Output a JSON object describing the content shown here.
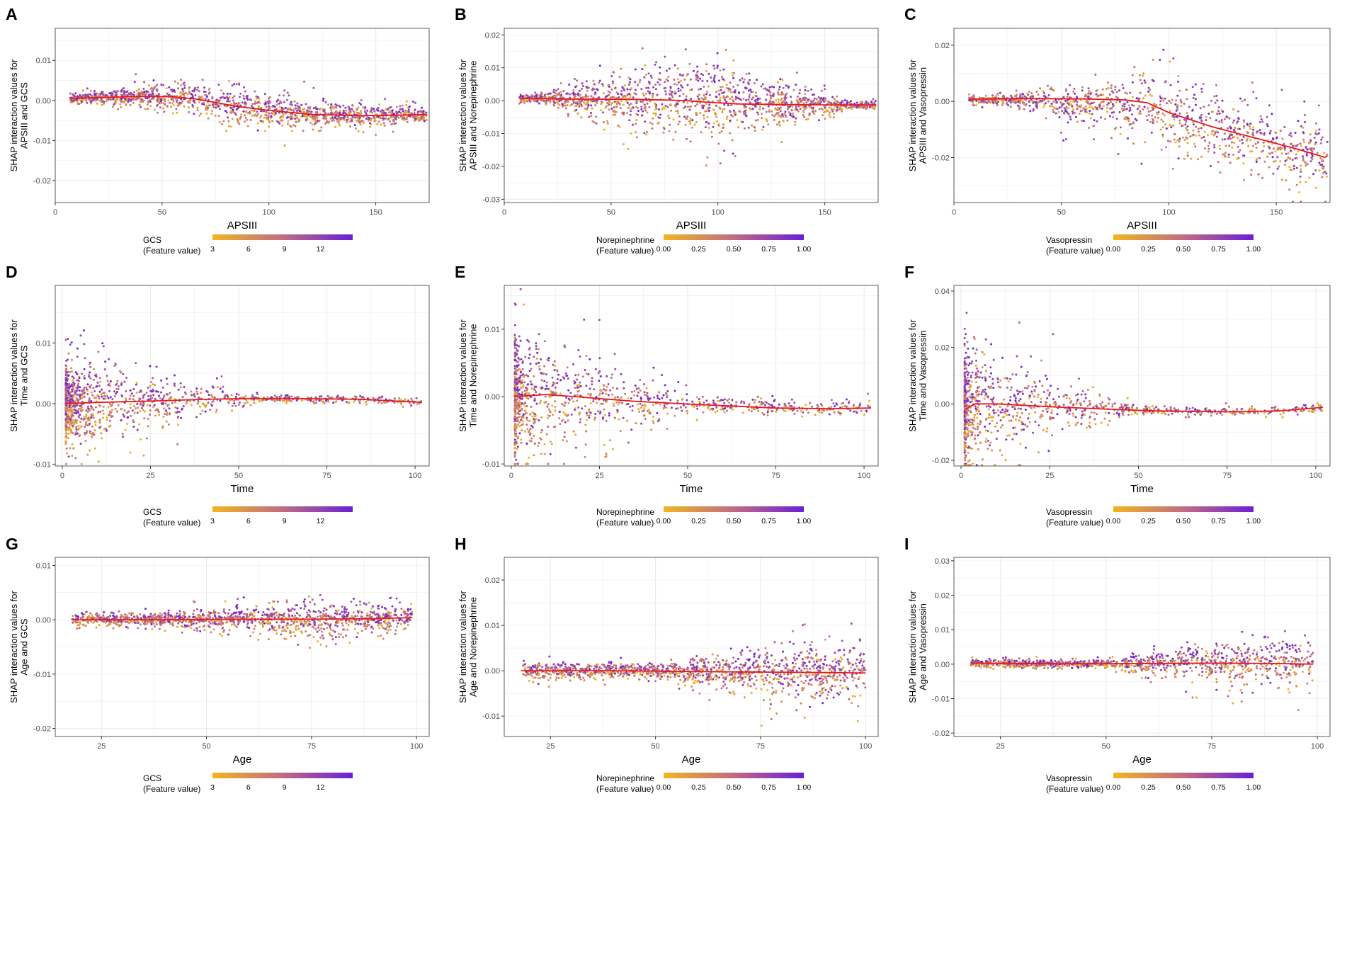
{
  "colors": {
    "low": "#f2b51f",
    "mid": "#c26b82",
    "high": "#6a1fd6",
    "smooth": "#e31a1c",
    "grid": "#ebebeb",
    "panel_border": "#333333"
  },
  "chart_data": [
    {
      "panel": "A",
      "type": "scatter",
      "xlabel": "APSIII",
      "ylabel_lines": [
        "SHAP interaction values for",
        "APSIII and GCS"
      ],
      "xlim": [
        0,
        175
      ],
      "ylim": [
        -0.0255,
        0.018
      ],
      "xticks": [
        {
          "v": 0,
          "t": "0"
        },
        {
          "v": 50,
          "t": "50"
        },
        {
          "v": 100,
          "t": "100"
        },
        {
          "v": 150,
          "t": "150"
        }
      ],
      "yticks": [
        {
          "v": -0.02,
          "t": "-0.02"
        },
        {
          "v": -0.01,
          "t": "-0.01"
        },
        {
          "v": 0,
          "t": "0.00"
        },
        {
          "v": 0.01,
          "t": "0.01"
        }
      ],
      "smooth_line": [
        [
          7,
          0.0005
        ],
        [
          20,
          0.0007
        ],
        [
          40,
          0.001
        ],
        [
          55,
          0.0009
        ],
        [
          65,
          0.0004
        ],
        [
          75,
          -0.0005
        ],
        [
          85,
          -0.0015
        ],
        [
          100,
          -0.0025
        ],
        [
          120,
          -0.0035
        ],
        [
          140,
          -0.0038
        ],
        [
          160,
          -0.0037
        ],
        [
          174,
          -0.0035
        ]
      ],
      "scatter": {
        "x_min": 7,
        "x_max": 174,
        "peak_x": 78,
        "spread_start": 0.001,
        "spread_peak": 0.008,
        "spread_end": 0.004,
        "count": 1400
      },
      "legend": {
        "title_lines": [
          "GCS",
          "(Feature value)"
        ],
        "ticks": [
          "3",
          "6",
          "9",
          "12"
        ]
      }
    },
    {
      "panel": "B",
      "type": "scatter",
      "xlabel": "APSIII",
      "ylabel_lines": [
        "SHAP interaction values for",
        "APSIII and Norepinephrine"
      ],
      "xlim": [
        0,
        175
      ],
      "ylim": [
        -0.031,
        0.022
      ],
      "xticks": [
        {
          "v": 0,
          "t": "0"
        },
        {
          "v": 50,
          "t": "50"
        },
        {
          "v": 100,
          "t": "100"
        },
        {
          "v": 150,
          "t": "150"
        }
      ],
      "yticks": [
        {
          "v": -0.03,
          "t": "-0.03"
        },
        {
          "v": -0.02,
          "t": "-0.02"
        },
        {
          "v": -0.01,
          "t": "-0.01"
        },
        {
          "v": 0,
          "t": "0.00"
        },
        {
          "v": 0.01,
          "t": "0.01"
        },
        {
          "v": 0.02,
          "t": "0.02"
        }
      ],
      "smooth_line": [
        [
          7,
          0.0007
        ],
        [
          30,
          0.0005
        ],
        [
          60,
          0.0004
        ],
        [
          75,
          0.0002
        ],
        [
          85,
          0
        ],
        [
          95,
          -0.0005
        ],
        [
          110,
          -0.001
        ],
        [
          130,
          -0.0012
        ],
        [
          150,
          -0.0013
        ],
        [
          174,
          -0.0013
        ]
      ],
      "scatter": {
        "x_min": 7,
        "x_max": 174,
        "peak_x": 88,
        "spread_start": 0.002,
        "spread_peak": 0.022,
        "spread_end": 0.002,
        "count": 1400
      },
      "legend": {
        "title_lines": [
          "Norepinephrine",
          "(Feature value)"
        ],
        "ticks": [
          "0.00",
          "0.25",
          "0.50",
          "0.75",
          "1.00"
        ]
      }
    },
    {
      "panel": "C",
      "type": "scatter",
      "xlabel": "APSIII",
      "ylabel_lines": [
        "SHAP interaction values for",
        "APSIII and Vasopressin"
      ],
      "xlim": [
        0,
        175
      ],
      "ylim": [
        -0.036,
        0.026
      ],
      "xticks": [
        {
          "v": 0,
          "t": "0"
        },
        {
          "v": 50,
          "t": "50"
        },
        {
          "v": 100,
          "t": "100"
        },
        {
          "v": 150,
          "t": "150"
        }
      ],
      "yticks": [
        {
          "v": -0.02,
          "t": "-0.02"
        },
        {
          "v": 0,
          "t": "0.00"
        },
        {
          "v": 0.02,
          "t": "0.02"
        }
      ],
      "smooth_line": [
        [
          7,
          0.0008
        ],
        [
          30,
          0.001
        ],
        [
          60,
          0.0009
        ],
        [
          80,
          0.0005
        ],
        [
          90,
          -0.0005
        ],
        [
          100,
          -0.004
        ],
        [
          120,
          -0.009
        ],
        [
          140,
          -0.013
        ],
        [
          160,
          -0.017
        ],
        [
          173,
          -0.02
        ]
      ],
      "scatter": {
        "x_min": 7,
        "x_max": 174,
        "peak_x": 100,
        "spread_start": 0.003,
        "spread_peak": 0.026,
        "spread_end": 0.02,
        "count": 1100
      },
      "legend": {
        "title_lines": [
          "Vasopressin",
          "(Feature value)"
        ],
        "ticks": [
          "0.00",
          "0.25",
          "0.50",
          "0.75",
          "1.00"
        ]
      }
    },
    {
      "panel": "D",
      "type": "scatter",
      "xlabel": "Time",
      "ylabel_lines": [
        "SHAP interaction values for",
        "Time and GCS"
      ],
      "xlim": [
        -2,
        104
      ],
      "ylim": [
        -0.0103,
        0.0195
      ],
      "xticks": [
        {
          "v": 0,
          "t": "0"
        },
        {
          "v": 25,
          "t": "25"
        },
        {
          "v": 50,
          "t": "50"
        },
        {
          "v": 75,
          "t": "75"
        },
        {
          "v": 100,
          "t": "100"
        }
      ],
      "yticks": [
        {
          "v": -0.01,
          "t": "-0.01"
        },
        {
          "v": 0,
          "t": "0.00"
        },
        {
          "v": 0.01,
          "t": "0.01"
        }
      ],
      "smooth_line": [
        [
          1,
          0
        ],
        [
          10,
          0.0002
        ],
        [
          25,
          0.0004
        ],
        [
          40,
          0.0007
        ],
        [
          50,
          0.0008
        ],
        [
          70,
          0.0008
        ],
        [
          85,
          0.0007
        ],
        [
          102,
          0.0002
        ]
      ],
      "scatter": {
        "x_min": 1,
        "x_max": 102,
        "peak_x": 10,
        "spread_start": 0.008,
        "spread_peak": 0.012,
        "spread_end": 0.001,
        "count": 1200,
        "skew": 0.18
      },
      "legend": {
        "title_lines": [
          "GCS",
          "(Feature value)"
        ],
        "ticks": [
          "3",
          "6",
          "9",
          "12"
        ]
      }
    },
    {
      "panel": "E",
      "type": "scatter",
      "xlabel": "Time",
      "ylabel_lines": [
        "SHAP interaction values for",
        "Time and Norepinephrine"
      ],
      "xlim": [
        -2,
        104
      ],
      "ylim": [
        -0.0103,
        0.0165
      ],
      "xticks": [
        {
          "v": 0,
          "t": "0"
        },
        {
          "v": 25,
          "t": "25"
        },
        {
          "v": 50,
          "t": "50"
        },
        {
          "v": 75,
          "t": "75"
        },
        {
          "v": 100,
          "t": "100"
        }
      ],
      "yticks": [
        {
          "v": -0.01,
          "t": "-0.01"
        },
        {
          "v": 0,
          "t": "0.00"
        },
        {
          "v": 0.01,
          "t": "0.01"
        }
      ],
      "smooth_line": [
        [
          1,
          0
        ],
        [
          10,
          0.0003
        ],
        [
          20,
          -0.0001
        ],
        [
          35,
          -0.0007
        ],
        [
          50,
          -0.0011
        ],
        [
          75,
          -0.0017
        ],
        [
          90,
          -0.0018
        ],
        [
          102,
          -0.0017
        ]
      ],
      "scatter": {
        "x_min": 1,
        "x_max": 102,
        "peak_x": 8,
        "spread_start": 0.008,
        "spread_peak": 0.015,
        "spread_end": 0.002,
        "count": 1100,
        "skew": 0.18
      },
      "legend": {
        "title_lines": [
          "Norepinephrine",
          "(Feature value)"
        ],
        "ticks": [
          "0.00",
          "0.25",
          "0.50",
          "0.75",
          "1.00"
        ]
      }
    },
    {
      "panel": "F",
      "type": "scatter",
      "xlabel": "Time",
      "ylabel_lines": [
        "SHAP interaction values for",
        "Time and Vasopressin"
      ],
      "xlim": [
        -2,
        104
      ],
      "ylim": [
        -0.022,
        0.042
      ],
      "xticks": [
        {
          "v": 0,
          "t": "0"
        },
        {
          "v": 25,
          "t": "25"
        },
        {
          "v": 50,
          "t": "50"
        },
        {
          "v": 75,
          "t": "75"
        },
        {
          "v": 100,
          "t": "100"
        }
      ],
      "yticks": [
        {
          "v": -0.02,
          "t": "-0.02"
        },
        {
          "v": 0,
          "t": "0.00"
        },
        {
          "v": 0.02,
          "t": "0.02"
        },
        {
          "v": 0.04,
          "t": "0.04"
        }
      ],
      "smooth_line": [
        [
          1,
          -0.002
        ],
        [
          4,
          0
        ],
        [
          10,
          0
        ],
        [
          25,
          -0.001
        ],
        [
          40,
          -0.0018
        ],
        [
          55,
          -0.0025
        ],
        [
          75,
          -0.0028
        ],
        [
          90,
          -0.0025
        ],
        [
          102,
          -0.0012
        ]
      ],
      "scatter": {
        "x_min": 1,
        "x_max": 102,
        "peak_x": 3,
        "spread_start": 0.036,
        "spread_peak": 0.036,
        "spread_end": 0.003,
        "count": 1000,
        "skew": 0.14
      },
      "legend": {
        "title_lines": [
          "Vasopressin",
          "(Feature value)"
        ],
        "ticks": [
          "0.00",
          "0.25",
          "0.50",
          "0.75",
          "1.00"
        ]
      }
    },
    {
      "panel": "G",
      "type": "scatter",
      "xlabel": "Age",
      "ylabel_lines": [
        "SHAP interaction values for",
        "Age and GCS"
      ],
      "xlim": [
        14,
        103
      ],
      "ylim": [
        -0.0215,
        0.0115
      ],
      "xticks": [
        {
          "v": 25,
          "t": "25"
        },
        {
          "v": 50,
          "t": "50"
        },
        {
          "v": 75,
          "t": "75"
        },
        {
          "v": 100,
          "t": "100"
        }
      ],
      "yticks": [
        {
          "v": -0.02,
          "t": "-0.02"
        },
        {
          "v": -0.01,
          "t": "-0.01"
        },
        {
          "v": 0,
          "t": "0.00"
        },
        {
          "v": 0.01,
          "t": "0.01"
        }
      ],
      "smooth_line": [
        [
          18,
          0
        ],
        [
          40,
          0
        ],
        [
          60,
          0.0001
        ],
        [
          75,
          0.0001
        ],
        [
          90,
          0.0002
        ],
        [
          99,
          0.0004
        ]
      ],
      "scatter": {
        "x_min": 18,
        "x_max": 99,
        "peak_x": 75,
        "spread_start": 0.002,
        "spread_peak": 0.006,
        "spread_end": 0.004,
        "count": 1300
      },
      "legend": {
        "title_lines": [
          "GCS",
          "(Feature value)"
        ],
        "ticks": [
          "3",
          "6",
          "9",
          "12"
        ]
      }
    },
    {
      "panel": "H",
      "type": "scatter",
      "xlabel": "Age",
      "ylabel_lines": [
        "SHAP interaction values for",
        "Age and Norepinephrine"
      ],
      "xlim": [
        14,
        103
      ],
      "ylim": [
        -0.0145,
        0.025
      ],
      "xticks": [
        {
          "v": 25,
          "t": "25"
        },
        {
          "v": 50,
          "t": "50"
        },
        {
          "v": 75,
          "t": "75"
        },
        {
          "v": 100,
          "t": "100"
        }
      ],
      "yticks": [
        {
          "v": -0.01,
          "t": "-0.01"
        },
        {
          "v": 0,
          "t": "0.00"
        },
        {
          "v": 0.01,
          "t": "0.01"
        },
        {
          "v": 0.02,
          "t": "0.02"
        }
      ],
      "smooth_line": [
        [
          18,
          0
        ],
        [
          40,
          0
        ],
        [
          60,
          -0.0002
        ],
        [
          75,
          -0.0003
        ],
        [
          90,
          -0.0004
        ],
        [
          100,
          -0.0005
        ]
      ],
      "scatter": {
        "x_min": 18,
        "x_max": 100,
        "peak_x": 88,
        "spread_start": 0.003,
        "spread_peak": 0.012,
        "spread_end": 0.008,
        "count": 1300
      },
      "legend": {
        "title_lines": [
          "Norepinephrine",
          "(Feature value)"
        ],
        "ticks": [
          "0.00",
          "0.25",
          "0.50",
          "0.75",
          "1.00"
        ]
      }
    },
    {
      "panel": "I",
      "type": "scatter",
      "xlabel": "Age",
      "ylabel_lines": [
        "SHAP interaction values for",
        "Age and Vasopressin"
      ],
      "xlim": [
        14,
        103
      ],
      "ylim": [
        -0.021,
        0.031
      ],
      "xticks": [
        {
          "v": 25,
          "t": "25"
        },
        {
          "v": 50,
          "t": "50"
        },
        {
          "v": 75,
          "t": "75"
        },
        {
          "v": 100,
          "t": "100"
        }
      ],
      "yticks": [
        {
          "v": -0.02,
          "t": "-0.02"
        },
        {
          "v": -0.01,
          "t": "-0.01"
        },
        {
          "v": 0,
          "t": "0.00"
        },
        {
          "v": 0.01,
          "t": "0.01"
        },
        {
          "v": 0.02,
          "t": "0.02"
        },
        {
          "v": 0.03,
          "t": "0.03"
        }
      ],
      "smooth_line": [
        [
          18,
          0.0003
        ],
        [
          40,
          0.0001
        ],
        [
          60,
          0.0002
        ],
        [
          75,
          0.0003
        ],
        [
          90,
          0.0002
        ],
        [
          99,
          0
        ]
      ],
      "scatter": {
        "x_min": 18,
        "x_max": 99,
        "peak_x": 85,
        "spread_start": 0.002,
        "spread_peak": 0.014,
        "spread_end": 0.008,
        "count": 1100
      },
      "legend": {
        "title_lines": [
          "Vasopressin",
          "(Feature value)"
        ],
        "ticks": [
          "0.00",
          "0.25",
          "0.50",
          "0.75",
          "1.00"
        ]
      }
    }
  ]
}
